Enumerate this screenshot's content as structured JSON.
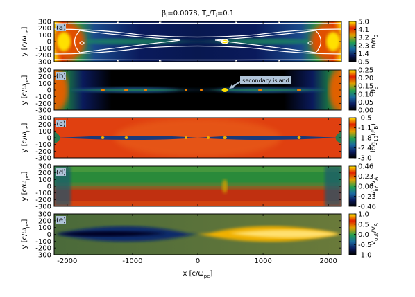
{
  "figure": {
    "title_prefix": "β",
    "title_sub1": "i",
    "title_mid": "=0.0078, T",
    "title_sub2": "e",
    "title_mid2": "/T",
    "title_sub3": "i",
    "title_suffix": "=0.1"
  },
  "chart_data": [
    {
      "type": "heatmap",
      "panel": "(a)",
      "quantity": "n/n0",
      "ylabel": "y [c/ωpe]",
      "xlim": [
        -2200,
        2200
      ],
      "ylim": [
        -300,
        300
      ],
      "yticks": [
        -300,
        -200,
        -100,
        0,
        100,
        200,
        300
      ],
      "colorbar": {
        "label": "n/n",
        "label_sub": "0",
        "min": 0.5,
        "max": 5.0,
        "ticks": [
          "5.0",
          "4.1",
          "3.2",
          "2.3",
          "1.4",
          "0.5"
        ],
        "colors": [
          "#000000",
          "#0a1a5c",
          "#1a6aa0",
          "#22a050",
          "#e0a000",
          "#e02000",
          "#ffe800"
        ]
      },
      "overlay": "magnetic field lines"
    },
    {
      "type": "heatmap",
      "panel": "(b)",
      "quantity": "θe",
      "ylabel": "y [c/ωpe]",
      "xlim": [
        -2200,
        2200
      ],
      "ylim": [
        -300,
        300
      ],
      "yticks": [
        -300,
        -200,
        -100,
        0,
        100,
        200,
        300
      ],
      "annotation": {
        "text": "secondary island",
        "x": 420,
        "y": 0
      },
      "colorbar": {
        "label": "θ",
        "label_sub": "e",
        "min": 0.0,
        "max": 0.25,
        "ticks": [
          "0.25",
          "0.20",
          "0.15",
          "0.10",
          "0.05",
          "0.00"
        ],
        "colors": [
          "#000000",
          "#0a1a5c",
          "#1a6aa0",
          "#22a050",
          "#e0a000",
          "#e02000",
          "#ffe800"
        ]
      }
    },
    {
      "type": "heatmap",
      "panel": "(c)",
      "quantity": "log10(εB)",
      "ylabel": "y [c/ωpe]",
      "xlim": [
        -2200,
        2200
      ],
      "ylim": [
        -300,
        300
      ],
      "yticks": [
        -300,
        -200,
        -100,
        0,
        100,
        200,
        300
      ],
      "colorbar": {
        "label": "log",
        "label_sub": "10",
        "label_tail": "(ε",
        "label_sub2": "B",
        "label_end": ")",
        "min": -3.0,
        "max": -0.5,
        "ticks": [
          "-0.5",
          "-1.1",
          "-1.8",
          "-2.4",
          "-3.0"
        ],
        "colors": [
          "#000000",
          "#0a1a5c",
          "#1a6aa0",
          "#22a050",
          "#e0a000",
          "#e02000",
          "#ffe800"
        ]
      }
    },
    {
      "type": "heatmap",
      "panel": "(d)",
      "quantity": "vin/vA",
      "ylabel": "y [c/ωpe]",
      "xlim": [
        -2200,
        2200
      ],
      "ylim": [
        -300,
        300
      ],
      "yticks": [
        -300,
        -200,
        -100,
        0,
        100,
        200,
        300
      ],
      "colorbar": {
        "label": "v",
        "label_sub": "in",
        "label_tail": "/v",
        "label_sub2": "A",
        "min": -0.46,
        "max": 0.46,
        "ticks": [
          "0.46",
          "0.23",
          "0.00",
          "-0.23",
          "-0.46"
        ],
        "colors": [
          "#000000",
          "#0a1a5c",
          "#1a6aa0",
          "#22a050",
          "#e0a000",
          "#e02000",
          "#ffe800"
        ]
      }
    },
    {
      "type": "heatmap",
      "panel": "(e)",
      "quantity": "vout/vA",
      "ylabel": "y [c/ωpe]",
      "xlabel": "x [c/ωpe]",
      "xlim": [
        -2200,
        2200
      ],
      "ylim": [
        -300,
        300
      ],
      "xticks": [
        -2000,
        -1000,
        0,
        1000,
        2000
      ],
      "yticks": [
        -300,
        -200,
        -100,
        0,
        100,
        200,
        300
      ],
      "colorbar": {
        "label": "v",
        "label_sub": "out",
        "label_tail": "/v",
        "label_sub2": "A",
        "min": -1.0,
        "max": 1.0,
        "ticks": [
          "1.0",
          "0.5",
          "0.0",
          "-0.5",
          "-1.0"
        ],
        "colors": [
          "#000000",
          "#0a1a5c",
          "#1a6aa0",
          "#22a050",
          "#e0a000",
          "#e02000",
          "#ffe800"
        ]
      }
    }
  ],
  "axis_labels": {
    "y_main": "y [c/ω",
    "y_sub": "pe",
    "y_end": "]",
    "x_main": "x [c/ω",
    "x_sub": "pe",
    "x_end": "]"
  }
}
